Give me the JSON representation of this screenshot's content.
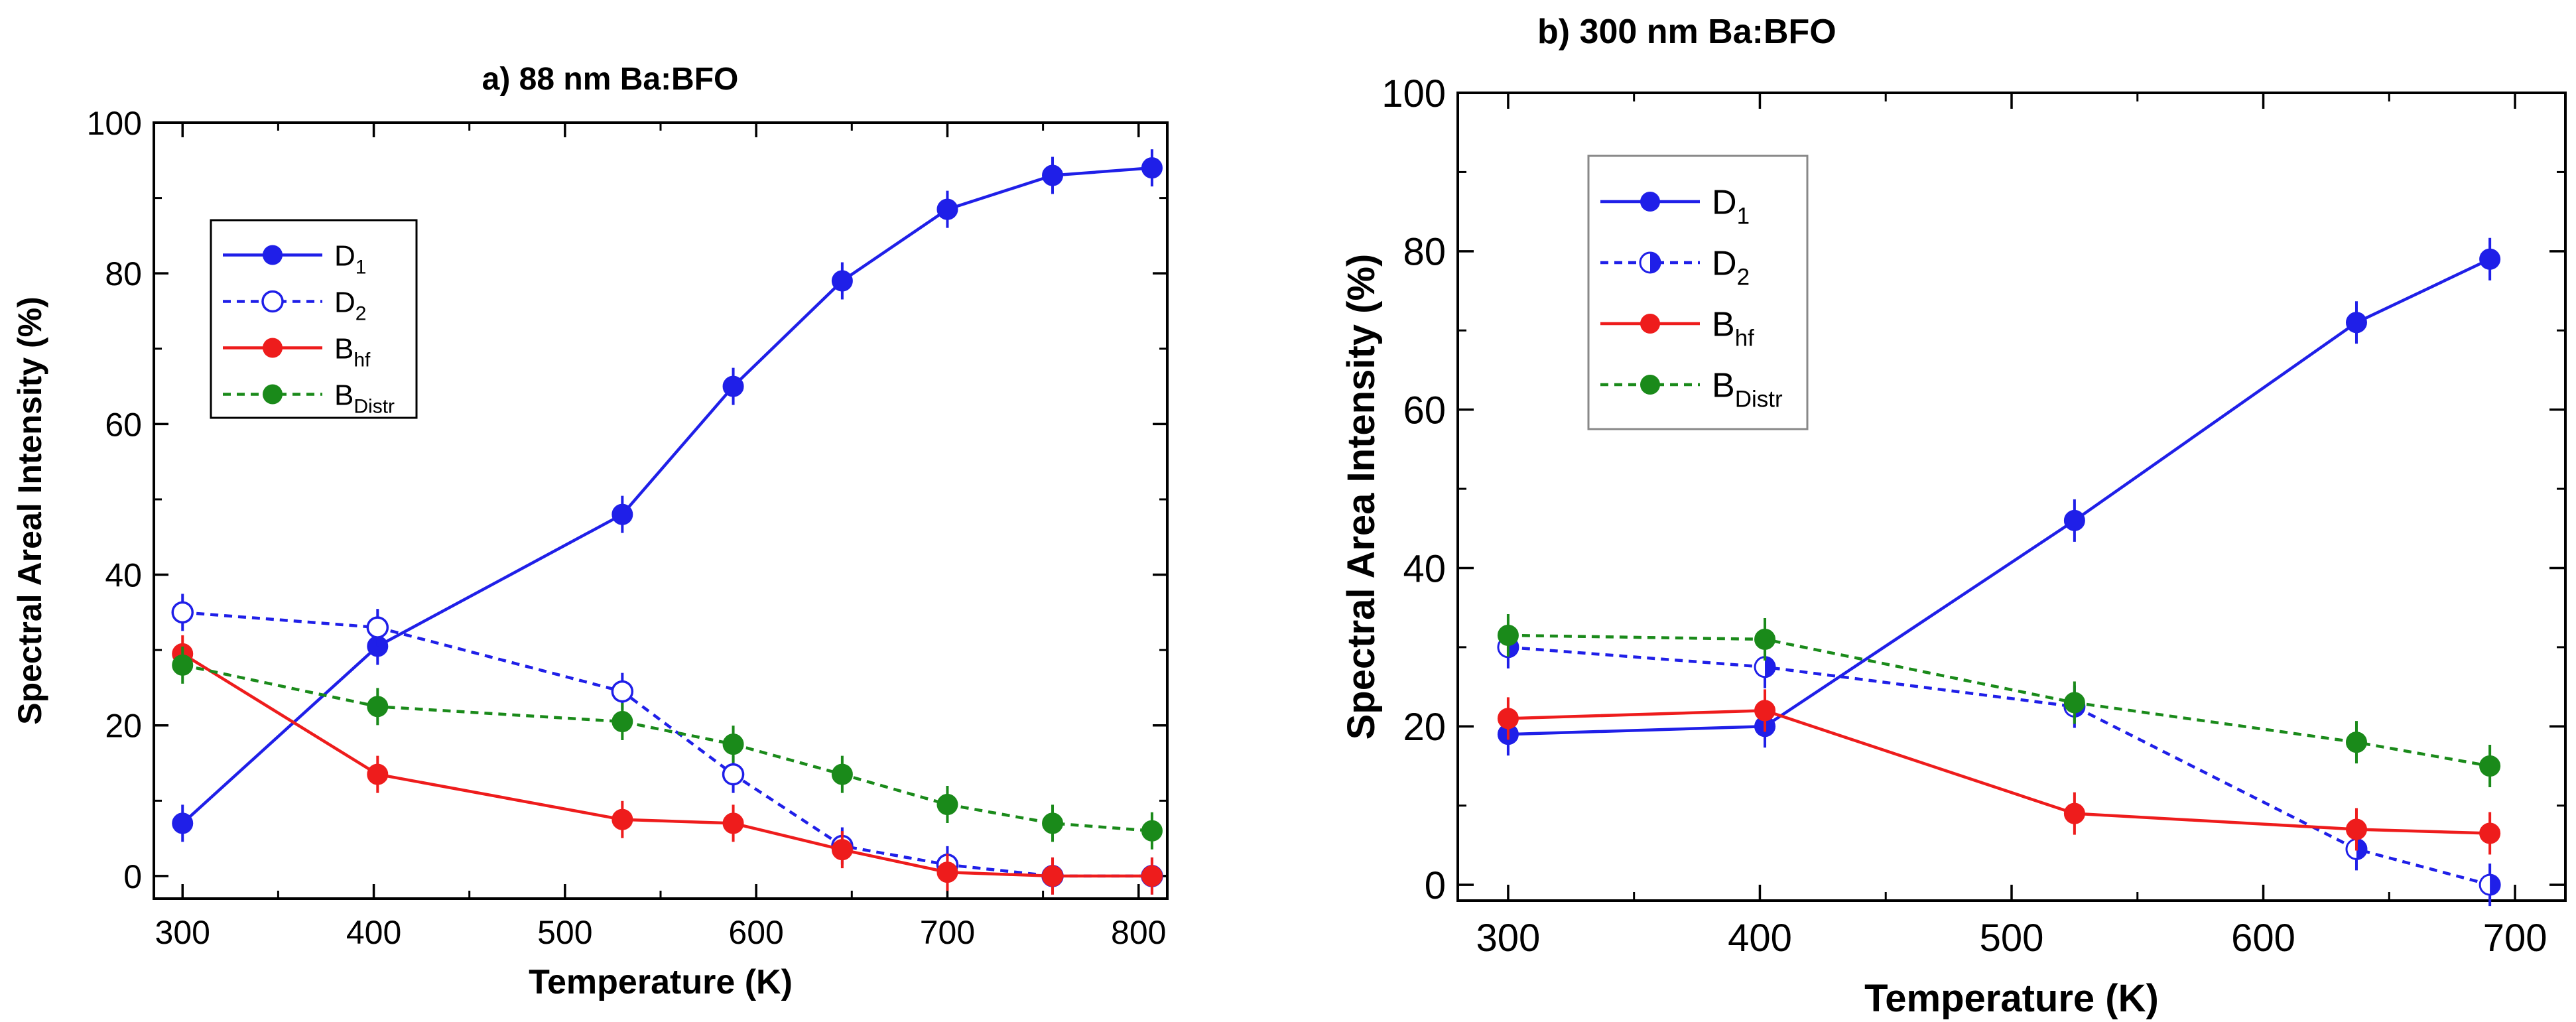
{
  "chart_data": [
    {
      "type": "line",
      "title": "a) 88 nm Ba:BFO",
      "xlabel": "Temperature (K)",
      "ylabel": "Spectral Areal Intensity (%)",
      "xlim": [
        285,
        815
      ],
      "ylim": [
        -3,
        100
      ],
      "xticks": [
        300,
        400,
        500,
        600,
        700,
        800
      ],
      "yticks": [
        0,
        20,
        40,
        60,
        80,
        100
      ],
      "grid": false,
      "legend": "upper-left",
      "series": [
        {
          "name": "D1",
          "main": "D",
          "sub": "1",
          "color": "#1f1fe8",
          "dash": false,
          "marker": "filled",
          "x": [
            300,
            402,
            530,
            588,
            645,
            700,
            755,
            807
          ],
          "y": [
            7,
            30.5,
            48,
            65,
            79,
            88.5,
            93,
            94
          ]
        },
        {
          "name": "D2",
          "main": "D",
          "sub": "2",
          "color": "#1f1fe8",
          "dash": true,
          "marker": "open",
          "x": [
            300,
            402,
            530,
            588,
            645,
            700,
            755,
            807
          ],
          "y": [
            35,
            33,
            24.5,
            13.5,
            4,
            1.5,
            0,
            0
          ]
        },
        {
          "name": "B_hf",
          "main": "B",
          "sub": "hf",
          "color": "#ee1c1c",
          "dash": false,
          "marker": "filled",
          "x": [
            300,
            402,
            530,
            588,
            645,
            700,
            755,
            807
          ],
          "y": [
            29.5,
            13.5,
            7.5,
            7,
            3.5,
            0.5,
            0,
            0
          ]
        },
        {
          "name": "B_Distr",
          "main": "B",
          "sub": "Distr",
          "color": "#1a8a1a",
          "dash": true,
          "marker": "filled",
          "x": [
            300,
            402,
            530,
            588,
            645,
            700,
            755,
            807
          ],
          "y": [
            28,
            22.5,
            20.5,
            17.5,
            13.5,
            9.5,
            7,
            6
          ]
        }
      ]
    },
    {
      "type": "line",
      "title": "b) 300 nm Ba:BFO",
      "xlabel": "Temperature (K)",
      "ylabel": "Spectral Area Intensity (%)",
      "xlim": [
        280,
        720
      ],
      "ylim": [
        -2,
        100
      ],
      "xticks": [
        300,
        400,
        500,
        600,
        700
      ],
      "yticks": [
        0,
        20,
        40,
        60,
        80,
        100
      ],
      "grid": false,
      "legend": "upper-left",
      "series": [
        {
          "name": "D1",
          "main": "D",
          "sub": "1",
          "color": "#1f1fe8",
          "dash": false,
          "marker": "filled",
          "x": [
            300,
            402,
            525,
            637,
            690
          ],
          "y": [
            19,
            20,
            46,
            71,
            79
          ]
        },
        {
          "name": "D2",
          "main": "D",
          "sub": "2",
          "color": "#1f1fe8",
          "dash": true,
          "marker": "half",
          "x": [
            300,
            402,
            525,
            637,
            690
          ],
          "y": [
            30,
            27.5,
            22.5,
            4.5,
            0
          ]
        },
        {
          "name": "B_hf",
          "main": "B",
          "sub": "hf",
          "color": "#ee1c1c",
          "dash": false,
          "marker": "filled",
          "x": [
            300,
            402,
            525,
            637,
            690
          ],
          "y": [
            21,
            22,
            9,
            7,
            6.5
          ]
        },
        {
          "name": "B_Distr",
          "main": "B",
          "sub": "Distr",
          "color": "#1a8a1a",
          "dash": true,
          "marker": "filled",
          "x": [
            300,
            402,
            525,
            637,
            690
          ],
          "y": [
            31.5,
            31,
            23,
            18,
            15
          ]
        }
      ]
    }
  ]
}
